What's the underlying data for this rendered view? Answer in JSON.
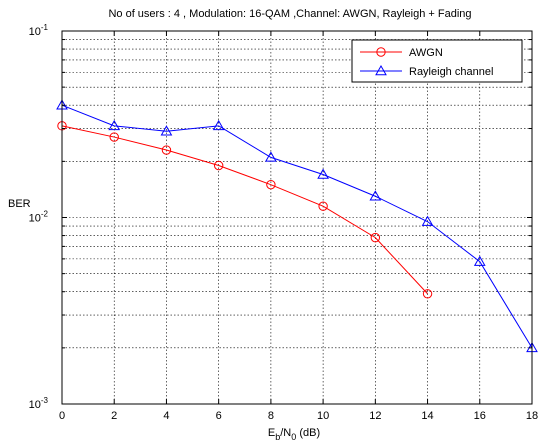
{
  "chart_data": {
    "type": "line",
    "title": "No of users : 4 , Modulation: 16-QAM ,Channel: AWGN, Rayleigh + Fading",
    "xlabel": {
      "main": "E",
      "sub1": "b",
      "mid": "/N",
      "sub2": "0",
      "unit": " (dB)"
    },
    "ylabel": "BER",
    "y_scale": "log",
    "xlim": [
      0,
      18
    ],
    "ylim": [
      0.001,
      0.1
    ],
    "grid": true,
    "legend_position": "top-right",
    "x_ticks": [
      "0",
      "2",
      "4",
      "6",
      "8",
      "10",
      "12",
      "14",
      "16",
      "18"
    ],
    "y_ticks": [
      {
        "base": "10",
        "exp": "-1",
        "value": 0.1
      },
      {
        "base": "10",
        "exp": "-2",
        "value": 0.01
      },
      {
        "base": "10",
        "exp": "-3",
        "value": 0.001
      }
    ],
    "series": [
      {
        "name": "AWGN",
        "color": "#ff0000",
        "marker": "circle",
        "x": [
          0,
          2,
          4,
          6,
          8,
          10,
          12,
          14
        ],
        "y": [
          0.031,
          0.027,
          0.023,
          0.019,
          0.015,
          0.0115,
          0.0078,
          0.0039
        ]
      },
      {
        "name": "Rayleigh channel",
        "color": "#0000ff",
        "marker": "triangle",
        "x": [
          0,
          2,
          4,
          6,
          8,
          10,
          12,
          14,
          16,
          18
        ],
        "y": [
          0.04,
          0.031,
          0.029,
          0.031,
          0.021,
          0.017,
          0.013,
          0.0095,
          0.0058,
          0.002
        ]
      }
    ]
  }
}
